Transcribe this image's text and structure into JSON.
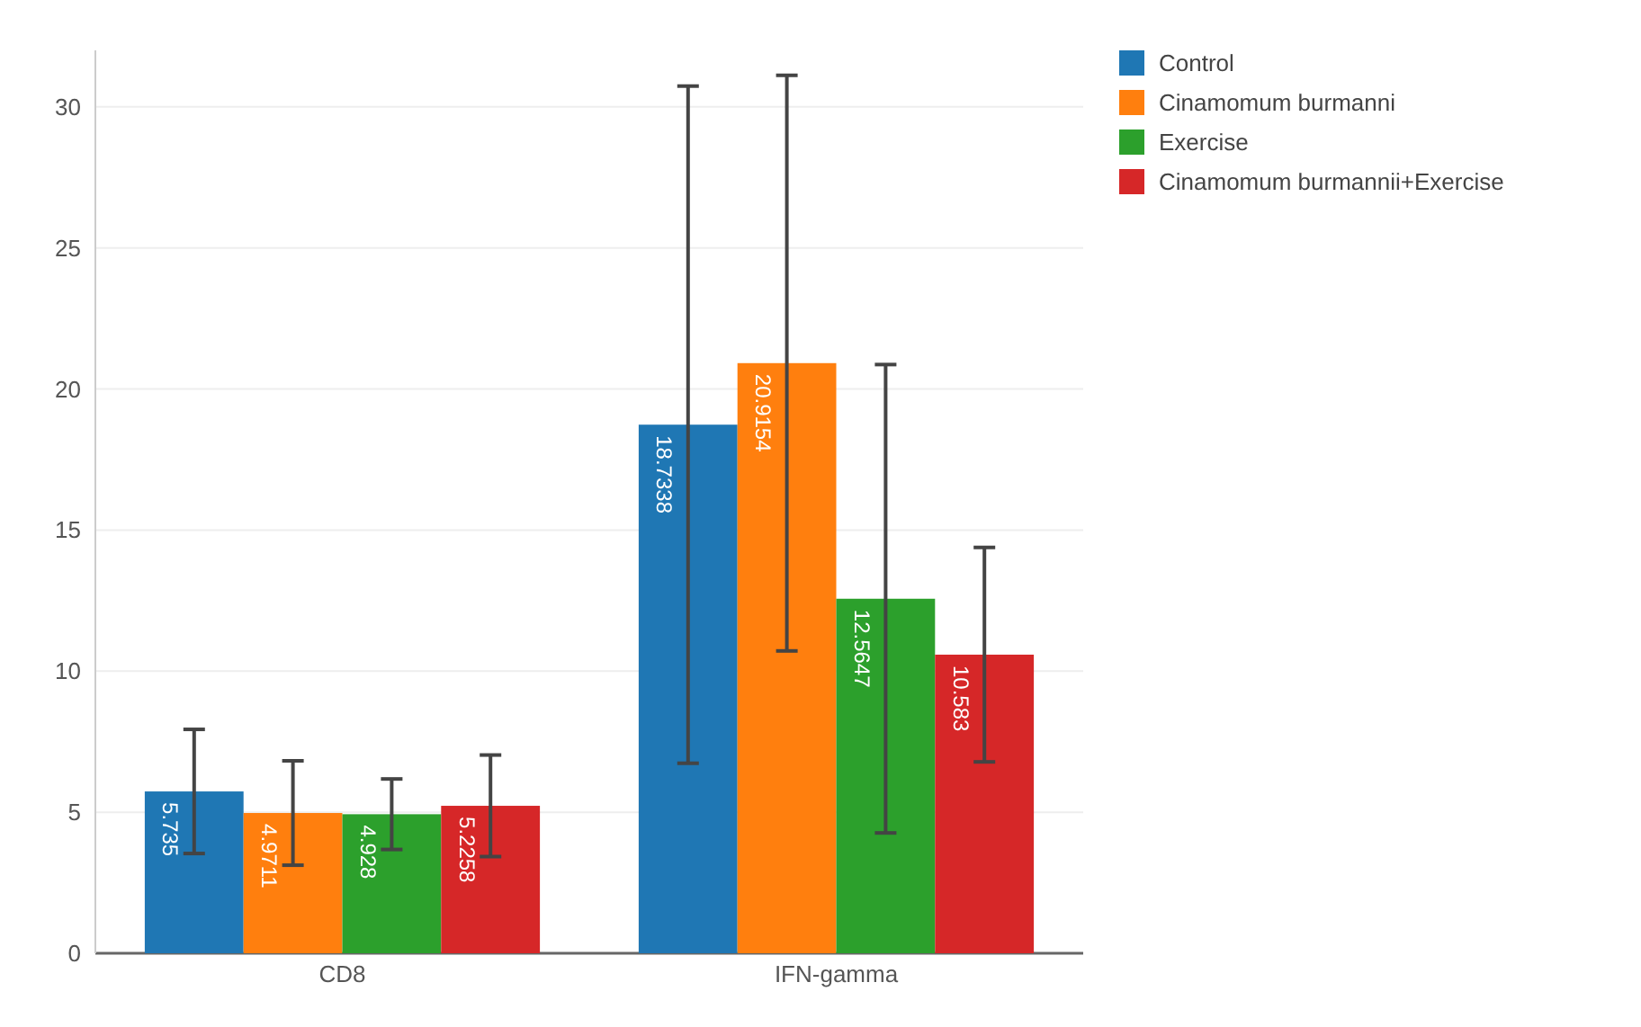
{
  "chart_data": {
    "type": "bar",
    "categories": [
      "CD8",
      "IFN-gamma"
    ],
    "series": [
      {
        "name": "Control",
        "color": "#1f77b4",
        "values": [
          5.735,
          18.7338
        ],
        "errors": [
          2.2,
          12
        ]
      },
      {
        "name": "Cinamomum burmanni",
        "color": "#ff7f0e",
        "values": [
          4.9711,
          20.9154
        ],
        "errors": [
          1.85,
          10.2
        ]
      },
      {
        "name": "Exercise",
        "color": "#2ca02c",
        "values": [
          4.928,
          12.5647
        ],
        "errors": [
          1.25,
          8.3
        ]
      },
      {
        "name": "Cinamomum burmannii+Exercise",
        "color": "#d62728",
        "values": [
          5.2258,
          10.583
        ],
        "errors": [
          1.8,
          3.8
        ]
      }
    ],
    "ylim": [
      0,
      32
    ],
    "yticks": [
      0,
      5,
      10,
      15,
      20,
      25,
      30
    ],
    "grid": "y",
    "legend": "top right",
    "data_labels": true
  }
}
